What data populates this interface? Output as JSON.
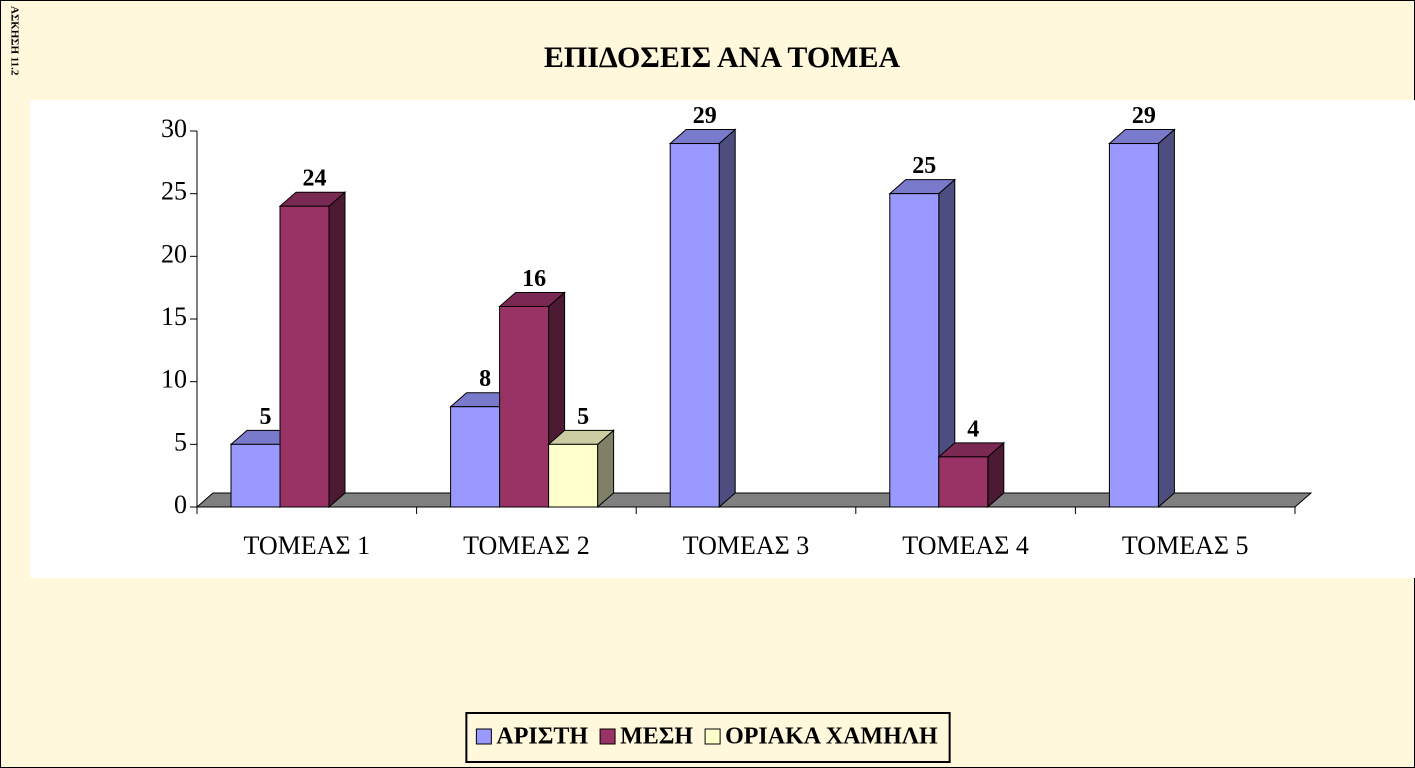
{
  "sheet_label": "ΑΣΚΗΣΗ 11.2",
  "chart_data": {
    "type": "bar3d",
    "title": "ΕΠΙΔΟΣΕΙΣ ΑΝΑ ΤΟΜΕΑ",
    "categories": [
      "ΤΟΜΕΑΣ 1",
      "ΤΟΜΕΑΣ 2",
      "ΤΟΜΕΑΣ 3",
      "ΤΟΜΕΑΣ 4",
      "ΤΟΜΕΑΣ 5"
    ],
    "series": [
      {
        "name": "ΑΡΙΣΤΗ",
        "color": "#9999ff",
        "values": [
          5,
          8,
          29,
          25,
          29
        ]
      },
      {
        "name": "ΜΕΣΗ",
        "color": "#993366",
        "values": [
          24,
          16,
          null,
          4,
          null
        ]
      },
      {
        "name": "ΟΡΙΑΚΑ ΧΑΜΗΛΗ",
        "color": "#ffffcc",
        "values": [
          null,
          5,
          null,
          null,
          null
        ]
      }
    ],
    "ylim": [
      0,
      30
    ],
    "yticks": [
      0,
      5,
      10,
      15,
      20,
      25,
      30
    ],
    "grid": false,
    "legend": "bottom"
  }
}
